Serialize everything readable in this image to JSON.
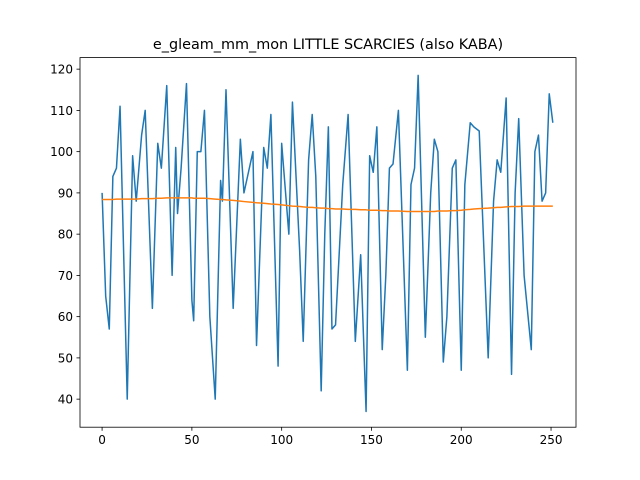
{
  "chart_data": {
    "type": "line",
    "title": "e_gleam_mm_mon LITTLE SCARCIES (also KABA)",
    "x": [
      0,
      2,
      4,
      6,
      8,
      10,
      14,
      17,
      19,
      22,
      24,
      28,
      31,
      33,
      36,
      39,
      41,
      42,
      44,
      47,
      50,
      51,
      53,
      55,
      57,
      60,
      63,
      66,
      67,
      69,
      73,
      77,
      79,
      84,
      86,
      90,
      92,
      94,
      98,
      100,
      104,
      106,
      110,
      112,
      115,
      117,
      119,
      122,
      124,
      126,
      128,
      130,
      134,
      137,
      141,
      144,
      147,
      149,
      151,
      153,
      156,
      158,
      160,
      162,
      165,
      170,
      172,
      174,
      176,
      180,
      183,
      185,
      187,
      190,
      192,
      195,
      197,
      200,
      202,
      205,
      207,
      210,
      215,
      218,
      220,
      222,
      225,
      228,
      230,
      232,
      235,
      239,
      241,
      243,
      245,
      247,
      249,
      251
    ],
    "series": [
      {
        "color": "#1f77b4",
        "values": [
          90,
          65,
          57,
          94,
          96,
          111,
          40,
          99,
          88,
          104,
          110,
          62,
          102,
          96,
          116,
          70,
          101,
          85,
          96,
          116.5,
          64,
          59,
          100,
          100,
          110,
          60,
          40,
          93,
          88,
          115,
          62,
          103,
          90,
          100,
          53,
          101,
          96,
          109,
          48,
          102,
          80,
          112,
          76,
          54,
          98,
          109,
          94,
          42,
          80,
          106,
          57,
          58,
          92,
          109,
          54,
          75,
          37,
          99,
          95,
          106,
          52,
          70,
          96,
          97,
          110,
          47,
          92,
          96,
          118.5,
          55,
          90,
          103,
          100,
          49,
          60,
          96,
          98,
          47,
          92,
          107,
          106,
          105,
          50,
          88,
          98,
          95,
          113,
          46,
          90,
          108,
          70,
          52,
          100,
          104,
          88,
          90,
          114,
          107
        ]
      },
      {
        "color": "#ff7f0e",
        "values": [
          88.4,
          88.4,
          88.4,
          88.4,
          88.5,
          88.5,
          88.5,
          88.5,
          88.5,
          88.6,
          88.6,
          88.6,
          88.7,
          88.7,
          88.8,
          88.8,
          88.8,
          88.8,
          88.8,
          88.8,
          88.8,
          88.7,
          88.7,
          88.7,
          88.7,
          88.6,
          88.5,
          88.4,
          88.4,
          88.3,
          88.2,
          88.0,
          87.9,
          87.7,
          87.6,
          87.5,
          87.4,
          87.3,
          87.2,
          87.1,
          86.9,
          86.8,
          86.7,
          86.6,
          86.5,
          86.5,
          86.4,
          86.3,
          86.3,
          86.2,
          86.2,
          86.1,
          86.1,
          86.0,
          86.0,
          85.9,
          85.9,
          85.8,
          85.8,
          85.8,
          85.7,
          85.7,
          85.6,
          85.6,
          85.6,
          85.5,
          85.5,
          85.5,
          85.5,
          85.5,
          85.5,
          85.5,
          85.6,
          85.6,
          85.6,
          85.7,
          85.7,
          85.8,
          85.9,
          86.0,
          86.1,
          86.2,
          86.3,
          86.4,
          86.5,
          86.5,
          86.6,
          86.7,
          86.7,
          86.7,
          86.8,
          86.8,
          86.8,
          86.8,
          86.8,
          86.8,
          86.8,
          86.8
        ]
      }
    ],
    "xlim": [
      -12.3,
      263.9
    ],
    "xticks": [
      0,
      50,
      100,
      150,
      200,
      250
    ],
    "ylim": [
      33.2,
      122.8
    ],
    "yticks": [
      40,
      50,
      60,
      70,
      80,
      90,
      100,
      110,
      120
    ]
  }
}
